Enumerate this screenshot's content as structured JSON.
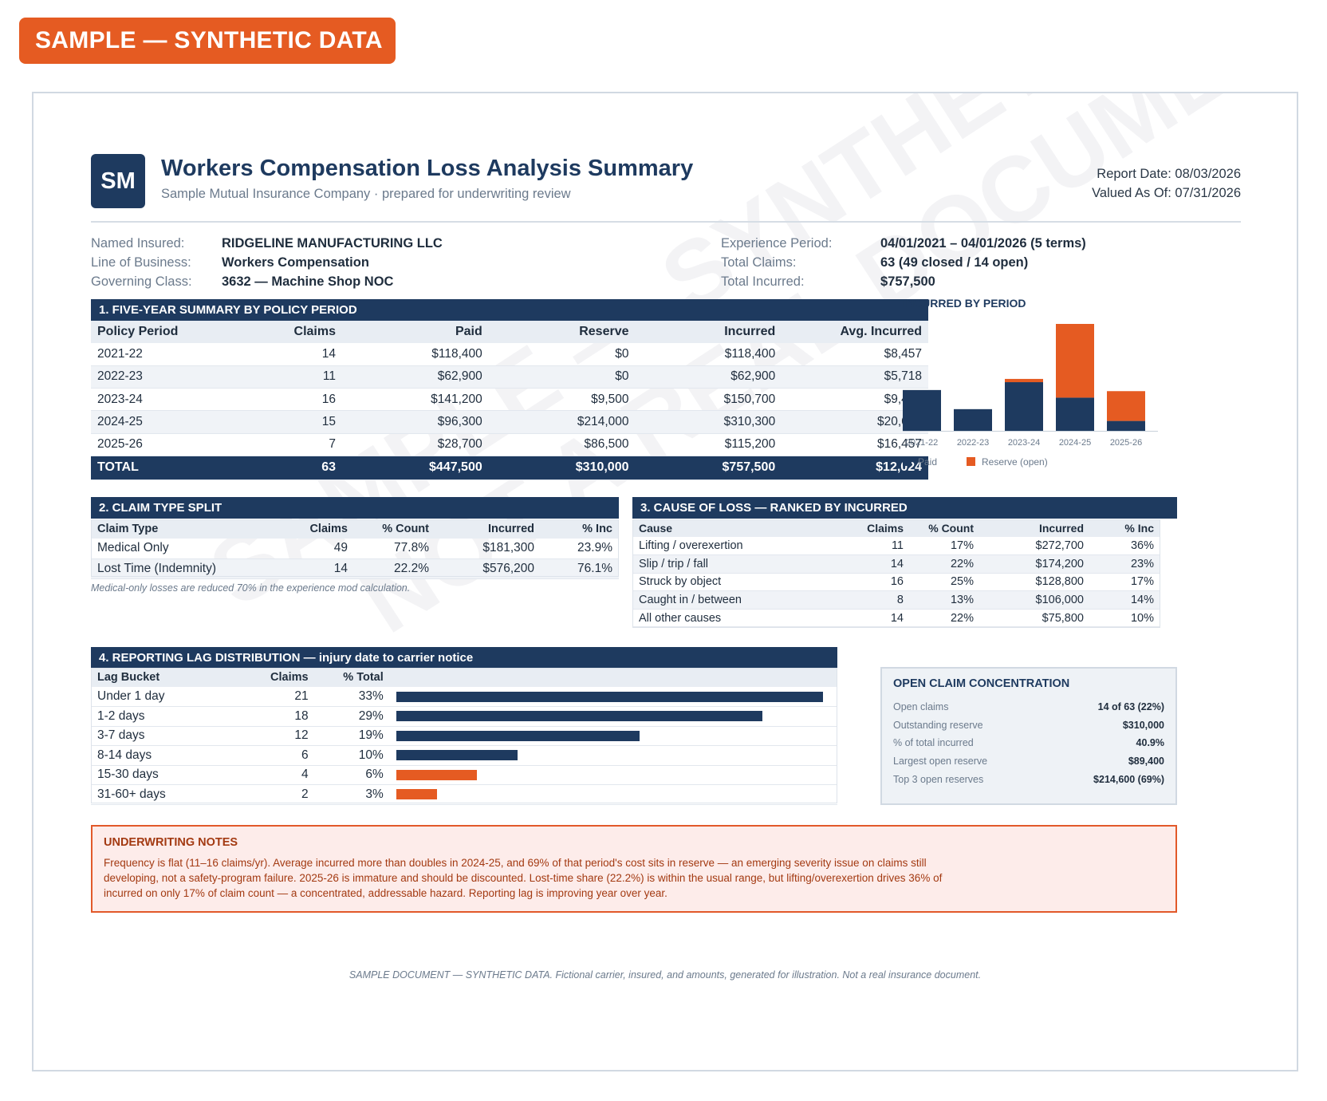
{
  "banner": "SAMPLE — SYNTHETIC DATA",
  "watermark": [
    "SAMPLE — SYNTHETIC DATA",
    "NOT A REAL DOCUMENT"
  ],
  "header": {
    "logo": "SM",
    "title": "Workers Compensation Loss Analysis Summary",
    "subtitle": "Sample Mutual Insurance Company  ·  prepared for underwriting review",
    "report_date": "Report Date: 08/03/2026",
    "valued_as_of": "Valued As Of: 07/31/2026"
  },
  "info_left": [
    {
      "label": "Named Insured:",
      "value": "RIDGELINE MANUFACTURING LLC"
    },
    {
      "label": "Line of Business:",
      "value": "Workers Compensation"
    },
    {
      "label": "Governing Class:",
      "value": "3632 — Machine Shop NOC"
    }
  ],
  "info_right": [
    {
      "label": "Experience Period:",
      "value": "04/01/2021 – 04/01/2026 (5 terms)"
    },
    {
      "label": "Total Claims:",
      "value": "63  (49 closed / 14 open)"
    },
    {
      "label": "Total Incurred:",
      "value": "$757,500"
    }
  ],
  "section1": {
    "title": "1.  FIVE-YEAR SUMMARY BY POLICY PERIOD",
    "columns": [
      "Policy Period",
      "Claims",
      "Paid",
      "Reserve",
      "Incurred",
      "Avg. Incurred"
    ],
    "rows": [
      [
        "2021-22",
        "14",
        "$118,400",
        "$0",
        "$118,400",
        "$8,457"
      ],
      [
        "2022-23",
        "11",
        "$62,900",
        "$0",
        "$62,900",
        "$5,718"
      ],
      [
        "2023-24",
        "16",
        "$141,200",
        "$9,500",
        "$150,700",
        "$9,419"
      ],
      [
        "2024-25",
        "15",
        "$96,300",
        "$214,000",
        "$310,300",
        "$20,687"
      ],
      [
        "2025-26",
        "7",
        "$28,700",
        "$86,500",
        "$115,200",
        "$16,457"
      ]
    ],
    "total": [
      "TOTAL",
      "63",
      "$447,500",
      "$310,000",
      "$757,500",
      "$12,024"
    ]
  },
  "chart_data": {
    "type": "bar",
    "title": "INCURRED BY PERIOD",
    "stacked": true,
    "categories": [
      "2021-22",
      "2022-23",
      "2023-24",
      "2024-25",
      "2025-26"
    ],
    "series": [
      {
        "name": "Paid",
        "values": [
          118400,
          62900,
          141200,
          96300,
          28700
        ],
        "color": "#1e3a5f"
      },
      {
        "name": "Reserve (open)",
        "values": [
          0,
          0,
          9500,
          214000,
          86500
        ],
        "color": "#e55b22"
      }
    ],
    "ylim": [
      0,
      310300
    ],
    "legend": "bottom",
    "grid": false
  },
  "section2": {
    "title": "2.  CLAIM TYPE SPLIT",
    "columns": [
      "Claim Type",
      "Claims",
      "% Count",
      "Incurred",
      "% Inc"
    ],
    "rows": [
      [
        "Medical Only",
        "49",
        "77.8%",
        "$181,300",
        "23.9%"
      ],
      [
        "Lost Time (Indemnity)",
        "14",
        "22.2%",
        "$576,200",
        "76.1%"
      ]
    ],
    "note": "Medical-only losses are reduced 70% in the experience mod calculation."
  },
  "section3": {
    "title": "3.  CAUSE OF LOSS — RANKED BY INCURRED",
    "columns": [
      "Cause",
      "Claims",
      "% Count",
      "Incurred",
      "% Inc"
    ],
    "rows": [
      [
        "Lifting / overexertion",
        "11",
        "17%",
        "$272,700",
        "36%"
      ],
      [
        "Slip / trip / fall",
        "14",
        "22%",
        "$174,200",
        "23%"
      ],
      [
        "Struck by object",
        "16",
        "25%",
        "$128,800",
        "17%"
      ],
      [
        "Caught in / between",
        "8",
        "13%",
        "$106,000",
        "14%"
      ],
      [
        "All other causes",
        "14",
        "22%",
        "$75,800",
        "10%"
      ]
    ]
  },
  "section4": {
    "title": "4.  REPORTING LAG DISTRIBUTION  —  injury date to carrier notice",
    "columns": [
      "Lag Bucket",
      "Claims",
      "% Total"
    ],
    "rows": [
      {
        "bucket": "Under 1 day",
        "claims": "21",
        "pct": "33%",
        "share": 0.333,
        "color": "#1e3a5f"
      },
      {
        "bucket": "1-2 days",
        "claims": "18",
        "pct": "29%",
        "share": 0.286,
        "color": "#1e3a5f"
      },
      {
        "bucket": "3-7 days",
        "claims": "12",
        "pct": "19%",
        "share": 0.19,
        "color": "#1e3a5f"
      },
      {
        "bucket": "8-14 days",
        "claims": "6",
        "pct": "10%",
        "share": 0.095,
        "color": "#1e3a5f"
      },
      {
        "bucket": "15-30 days",
        "claims": "4",
        "pct": "6%",
        "share": 0.063,
        "color": "#e55b22"
      },
      {
        "bucket": "31-60+ days",
        "claims": "2",
        "pct": "3%",
        "share": 0.032,
        "color": "#e55b22"
      }
    ]
  },
  "open_claims": {
    "title": "OPEN CLAIM CONCENTRATION",
    "rows": [
      {
        "label": "Open claims",
        "value": "14 of 63  (22%)"
      },
      {
        "label": "Outstanding reserve",
        "value": "$310,000"
      },
      {
        "label": "% of total incurred",
        "value": "40.9%"
      },
      {
        "label": "Largest open reserve",
        "value": "$89,400"
      },
      {
        "label": "Top 3 open reserves",
        "value": "$214,600  (69%)"
      }
    ]
  },
  "notes": {
    "title": "UNDERWRITING NOTES",
    "body": "Frequency is flat (11–16 claims/yr). Average incurred more than doubles in 2024-25, and 69% of that period's cost sits in reserve — an emerging severity issue on claims still developing, not a safety-program failure. 2025-26 is immature and should be discounted. Lost-time share (22.2%) is within the usual range, but lifting/overexertion drives 36% of incurred on only 17% of claim count — a concentrated, addressable hazard. Reporting lag is improving year over year."
  },
  "footer": "SAMPLE DOCUMENT — SYNTHETIC DATA. Fictional carrier, insured, and amounts, generated for illustration. Not a real insurance document."
}
